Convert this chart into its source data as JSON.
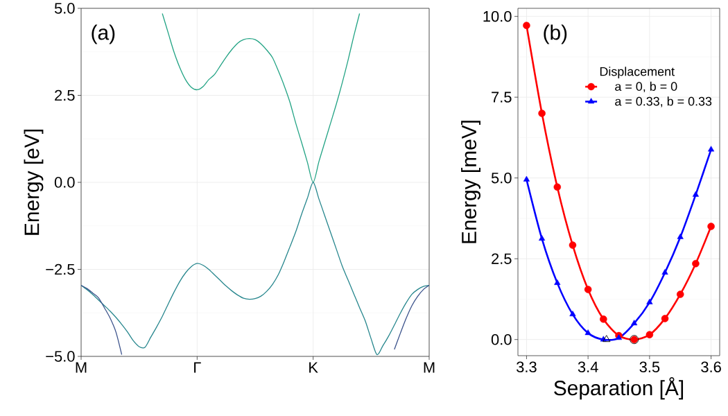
{
  "chart_data": [
    {
      "type": "line",
      "ylabel": "Energy [eV]",
      "annotations": [
        "(a)"
      ],
      "grid": true,
      "categories": [
        "M",
        null,
        null,
        null,
        null,
        null,
        null,
        null,
        null,
        null,
        null,
        null,
        null,
        null,
        null,
        null,
        null,
        null,
        null,
        null,
        "Γ",
        null,
        null,
        null,
        null,
        null,
        null,
        null,
        null,
        null,
        null,
        null,
        null,
        null,
        null,
        null,
        null,
        null,
        null,
        null,
        "K",
        null,
        null,
        null,
        null,
        null,
        null,
        null,
        null,
        null,
        null,
        null,
        null,
        null,
        null,
        null,
        null,
        null,
        null,
        null,
        "M"
      ],
      "ylim": [
        -5,
        5
      ],
      "yticks": [
        {
          "value": -5,
          "label": "−5.0"
        },
        {
          "value": -2.5,
          "label": "−2.5"
        },
        {
          "value": 0,
          "label": "0.0"
        },
        {
          "value": 2.5,
          "label": "2.5"
        },
        {
          "value": 5,
          "label": "5.0"
        }
      ],
      "series": [
        {
          "color": "#22a384",
          "values": [
            null,
            null,
            null,
            null,
            null,
            null,
            null,
            null,
            null,
            null,
            null,
            null,
            null,
            null,
            4.85,
            4.3,
            3.75,
            3.3,
            2.95,
            2.73,
            2.66,
            2.75,
            2.95,
            3.1,
            3.35,
            3.6,
            3.82,
            4.0,
            4.1,
            4.13,
            4.1,
            3.98,
            3.8,
            3.58,
            3.2,
            2.78,
            2.3,
            1.7,
            1.15,
            0.58,
            0,
            0.6,
            1.15,
            1.7,
            2.25,
            2.85,
            3.5,
            4.2,
            4.85,
            null,
            null,
            null,
            null,
            null,
            null,
            null,
            null,
            null,
            null,
            null,
            null
          ]
        },
        {
          "color": "#26868d",
          "values": [
            -2.96,
            -3.08,
            -3.22,
            -3.38,
            -3.54,
            -3.7,
            -3.88,
            -4.08,
            -4.3,
            -4.55,
            -4.72,
            -4.74,
            -4.45,
            -4.16,
            -3.85,
            -3.5,
            -3.16,
            -2.85,
            -2.6,
            -2.42,
            -2.33,
            -2.38,
            -2.5,
            -2.66,
            -2.82,
            -2.98,
            -3.12,
            -3.24,
            -3.33,
            -3.36,
            -3.34,
            -3.27,
            -3.13,
            -2.93,
            -2.65,
            -2.27,
            -1.85,
            -1.42,
            -0.92,
            -0.46,
            0,
            -0.48,
            -0.96,
            -1.44,
            -1.92,
            -2.4,
            -2.8,
            -3.2,
            -3.6,
            -3.99,
            -4.5,
            -4.95,
            -4.7,
            -4.42,
            -4.1,
            -3.77,
            -3.47,
            -3.22,
            -3.08,
            -2.99,
            -2.96
          ]
        },
        {
          "color": "#3b528b",
          "values": [
            -2.96,
            -3.05,
            -3.18,
            -3.32,
            -3.6,
            -3.9,
            -4.3,
            -4.95,
            null,
            null,
            null,
            null,
            null,
            null,
            null,
            null,
            null,
            null,
            null,
            null,
            null,
            null,
            null,
            null,
            null,
            null,
            null,
            null,
            null,
            null,
            null,
            null,
            null,
            null,
            null,
            null,
            null,
            null,
            null,
            null,
            null,
            null,
            null,
            null,
            null,
            null,
            null,
            null,
            null,
            null,
            null,
            null,
            null,
            null,
            -4.8,
            -4.35,
            -3.92,
            -3.55,
            -3.28,
            -3.08,
            -2.96
          ]
        }
      ]
    },
    {
      "type": "line",
      "xlabel": "Separation [Å]",
      "ylabel": "Energy [meV]",
      "annotations": [
        "(b)"
      ],
      "grid": true,
      "legend": "top right",
      "legend_title": "Displacement",
      "xlim": [
        3.286,
        3.614
      ],
      "ylim": [
        -0.5,
        10.25
      ],
      "xticks": [
        {
          "value": 3.3,
          "label": "3.3"
        },
        {
          "value": 3.4,
          "label": "3.4"
        },
        {
          "value": 3.5,
          "label": "3.5"
        },
        {
          "value": 3.6,
          "label": "3.6"
        }
      ],
      "yticks": [
        {
          "value": 0,
          "label": "0.0"
        },
        {
          "value": 2.5,
          "label": "2.5"
        },
        {
          "value": 5,
          "label": "5.0"
        },
        {
          "value": 7.5,
          "label": "7.5"
        },
        {
          "value": 10,
          "label": "10.0"
        }
      ],
      "series": [
        {
          "name": "a = 0, b = 0",
          "color": "#ff0000",
          "marker": "circle",
          "x": [
            3.3,
            3.325,
            3.35,
            3.375,
            3.4,
            3.425,
            3.45,
            3.475,
            3.5,
            3.525,
            3.55,
            3.575,
            3.6
          ],
          "values": [
            9.72,
            7.0,
            4.72,
            2.92,
            1.55,
            0.63,
            0.12,
            0,
            0.15,
            0.65,
            1.4,
            2.35,
            3.5
          ]
        },
        {
          "name": "a = 0.33, b = 0.33",
          "color": "#0000ff",
          "marker": "triangle",
          "x": [
            3.3,
            3.325,
            3.35,
            3.375,
            3.4,
            3.425,
            3.45,
            3.475,
            3.5,
            3.525,
            3.55,
            3.575,
            3.6
          ],
          "values": [
            4.95,
            3.12,
            1.75,
            0.78,
            0.2,
            0,
            0.05,
            0.5,
            1.15,
            2.07,
            3.17,
            4.48,
            5.88
          ]
        },
        {
          "type": "scatter",
          "color": "#000000",
          "marker": "triangle",
          "x": [
            3.43
          ],
          "values": [
            0
          ]
        },
        {
          "type": "scatter",
          "color": "#000000",
          "marker": "circle",
          "x": [
            3.475
          ],
          "values": [
            0
          ]
        }
      ]
    }
  ]
}
